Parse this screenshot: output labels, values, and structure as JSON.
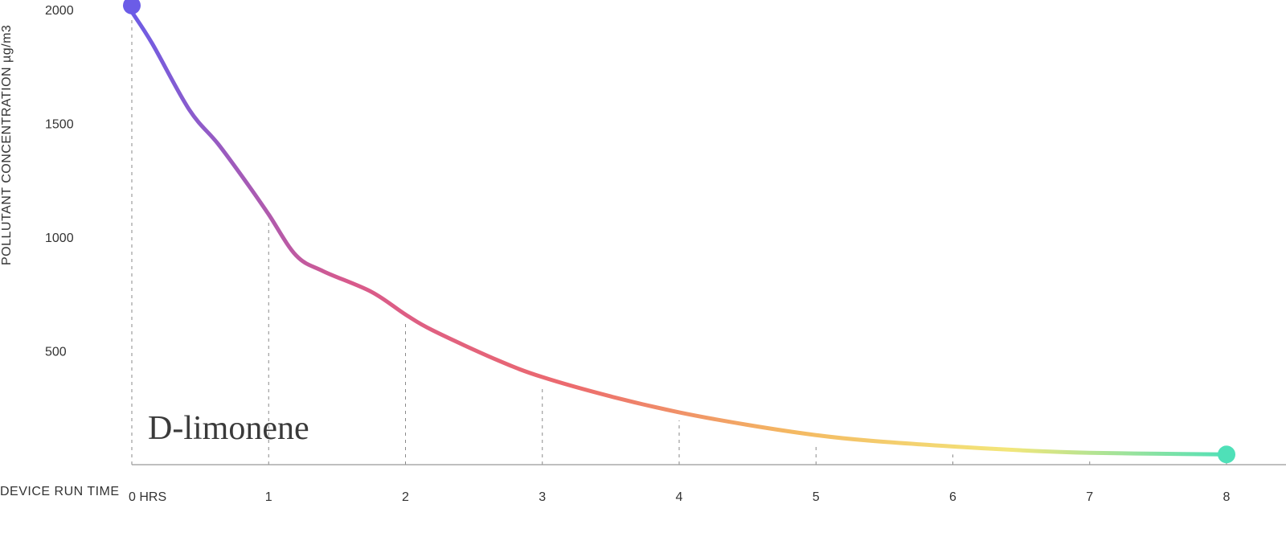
{
  "chart_data": {
    "type": "line",
    "title": "",
    "annotation": "D-limonene",
    "ylabel": "POLLUTANT CONCENTRATION µg/m3",
    "xlabel": "DEVICE RUN TIME",
    "x_ticks": [
      {
        "value": 0,
        "label": "0 HRS"
      },
      {
        "value": 1,
        "label": "1"
      },
      {
        "value": 2,
        "label": "2"
      },
      {
        "value": 3,
        "label": "3"
      },
      {
        "value": 4,
        "label": "4"
      },
      {
        "value": 5,
        "label": "5"
      },
      {
        "value": 6,
        "label": "6"
      },
      {
        "value": 7,
        "label": "7"
      },
      {
        "value": 8,
        "label": "8"
      }
    ],
    "y_ticks": [
      {
        "value": 500,
        "label": "500"
      },
      {
        "value": 1000,
        "label": "1000"
      },
      {
        "value": 1500,
        "label": "1500"
      },
      {
        "value": 2000,
        "label": "2000"
      }
    ],
    "xlim": [
      0,
      8
    ],
    "ylim": [
      0,
      2000
    ],
    "grid": "vertical-dashed",
    "gradient_colors": [
      "#6b5ce7",
      "#d85a8c",
      "#ec6a6e",
      "#f4b862",
      "#f3e67a",
      "#4fe0b8"
    ],
    "x": [
      0,
      0.15,
      0.42,
      0.63,
      0.85,
      1.0,
      1.2,
      1.4,
      1.75,
      2.0,
      2.2,
      2.67,
      3.0,
      3.5,
      4.0,
      4.5,
      5.0,
      5.4,
      6.0,
      6.6,
      7.0,
      7.5,
      8.0
    ],
    "y": [
      1990,
      1850,
      1560,
      1410,
      1230,
      1100,
      920,
      850,
      760,
      660,
      590,
      460,
      385,
      300,
      230,
      175,
      130,
      105,
      80,
      60,
      52,
      48,
      45
    ],
    "start_point": {
      "x": 0,
      "y": 1990,
      "color": "#6b5ce7"
    },
    "end_point": {
      "x": 8,
      "y": 45,
      "color": "#4fe0b8"
    }
  }
}
